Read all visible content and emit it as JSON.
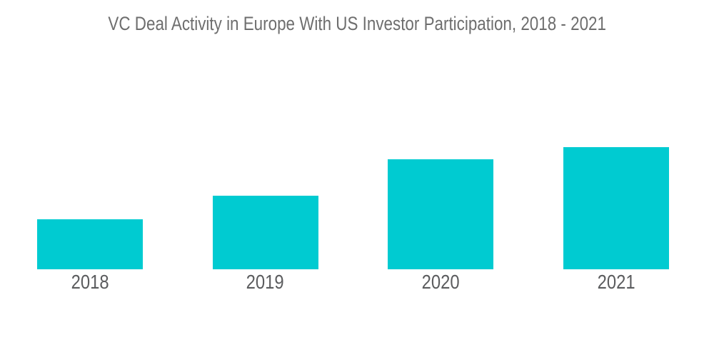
{
  "title": "VC Deal Activity in Europe With US Investor Participation, 2018 - 2021",
  "colors": {
    "background": "#FFFFFF",
    "bar": "#00CBD1",
    "title_text": "#6E6E6E",
    "tick_label_text": "#5B5C5E"
  },
  "chart_data": {
    "type": "bar",
    "title": "VC Deal Activity in Europe With US Investor Participation, 2018 - 2021",
    "categories": [
      "2018",
      "2019",
      "2020",
      "2021"
    ],
    "values": [
      41,
      60,
      90,
      100
    ],
    "units": "relative scale (no y-axis shown; values normalized to 2021 = 100)",
    "xlabel": "",
    "ylabel": "",
    "ylim": [
      0,
      100
    ],
    "grid": false,
    "legend": false,
    "bar_color": "#00CBD1"
  }
}
